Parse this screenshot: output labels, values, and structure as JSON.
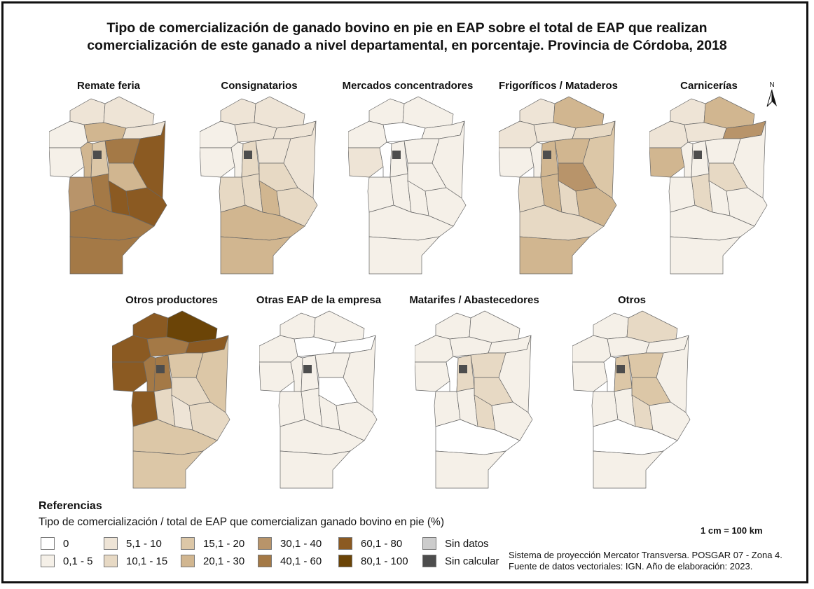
{
  "title": [
    "Tipo de comercialización de ganado bovino en pie en EAP sobre el total de EAP que realizan",
    "comercialización de este ganado a nivel departamental, en porcentaje. Provincia de Córdoba, 2018"
  ],
  "north_label": "N",
  "classes": [
    {
      "label": "0",
      "color": "#ffffff"
    },
    {
      "label": "0,1 - 5",
      "color": "#f5f0e8"
    },
    {
      "label": "5,1 - 10",
      "color": "#eee4d6"
    },
    {
      "label": "10,1 - 15",
      "color": "#e7d9c4"
    },
    {
      "label": "15,1 - 20",
      "color": "#dcc7a7"
    },
    {
      "label": "20,1 - 30",
      "color": "#d1b690"
    },
    {
      "label": "30,1 - 40",
      "color": "#b8946a"
    },
    {
      "label": "40,1 - 60",
      "color": "#a47946"
    },
    {
      "label": "60,1 - 80",
      "color": "#8b5a22"
    },
    {
      "label": "80,1 - 100",
      "color": "#6b4407"
    },
    {
      "label": "Sin datos",
      "color": "#cccccc"
    },
    {
      "label": "Sin calcular",
      "color": "#4d4d4d"
    }
  ],
  "maps": [
    {
      "title": "Remate feria",
      "classes": [
        2,
        2,
        1,
        5,
        2,
        1,
        5,
        4,
        7,
        8,
        5,
        6,
        7,
        8,
        8,
        7,
        7
      ]
    },
    {
      "title": "Consignatarios",
      "classes": [
        2,
        2,
        1,
        2,
        2,
        1,
        1,
        3,
        2,
        2,
        3,
        3,
        3,
        5,
        3,
        5,
        5
      ]
    },
    {
      "title": "Mercados concentradores",
      "classes": [
        1,
        1,
        1,
        0,
        1,
        2,
        0,
        1,
        1,
        1,
        1,
        1,
        1,
        1,
        1,
        1,
        1
      ]
    },
    {
      "title": "Frigoríficos / Mataderos",
      "classes": [
        2,
        5,
        2,
        2,
        3,
        1,
        1,
        5,
        5,
        4,
        6,
        3,
        5,
        3,
        5,
        3,
        5
      ]
    },
    {
      "title": "Carnicerías",
      "classes": [
        2,
        5,
        2,
        2,
        6,
        5,
        1,
        1,
        1,
        1,
        3,
        1,
        3,
        1,
        1,
        1,
        1
      ]
    },
    {
      "title": "Otros productores",
      "classes": [
        8,
        9,
        8,
        7,
        8,
        8,
        7,
        7,
        4,
        4,
        3,
        8,
        3,
        2,
        3,
        4,
        4
      ]
    },
    {
      "title": "Otras EAP de la empresa",
      "classes": [
        1,
        1,
        1,
        0,
        0,
        1,
        1,
        1,
        1,
        1,
        0,
        1,
        1,
        1,
        1,
        1,
        1
      ]
    },
    {
      "title": "Matarifes / Abastecedores",
      "classes": [
        1,
        1,
        1,
        1,
        1,
        1,
        0,
        3,
        3,
        1,
        3,
        1,
        1,
        3,
        1,
        0,
        1
      ]
    },
    {
      "title": "Otros",
      "classes": [
        1,
        3,
        1,
        1,
        1,
        1,
        0,
        4,
        4,
        1,
        4,
        1,
        1,
        3,
        1,
        0,
        1
      ]
    }
  ],
  "legend": {
    "title": "Referencias",
    "subtitle": "Tipo de comercialización / total de EAP que comercializan ganado bovino en pie (%)"
  },
  "scale": "1 cm = 100 km",
  "source": [
    "Sistema de proyección Mercator Transversa. POSGAR 07 - Zona 4.",
    "Fuente de datos vectoriales: IGN. Año de elaboración: 2023."
  ]
}
